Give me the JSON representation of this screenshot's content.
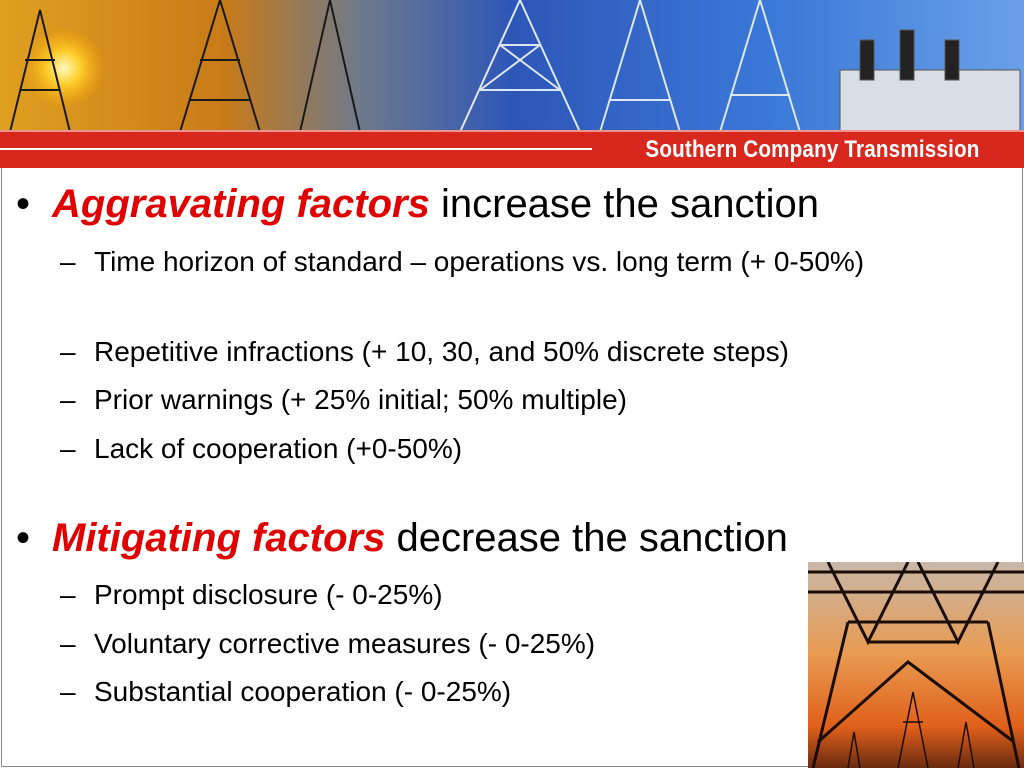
{
  "header": {
    "brand": "Southern Company Transmission"
  },
  "bullets": [
    {
      "emphasis": "Aggravating factors",
      "text": "increase the sanction",
      "items": [
        "Time horizon of standard – operations vs. long term (+ 0-50%)",
        "Repetitive infractions (+ 10, 30, and 50% discrete steps)",
        "Prior warnings (+ 25% initial; 50% multiple)",
        "Lack of cooperation (+0-50%)"
      ]
    },
    {
      "emphasis": "Mitigating factors",
      "text": "decrease the sanction",
      "items": [
        "Prompt disclosure  (- 0-25%)",
        "Voluntary corrective measures (- 0-25%)",
        "Substantial cooperation (- 0-25%)"
      ]
    }
  ]
}
